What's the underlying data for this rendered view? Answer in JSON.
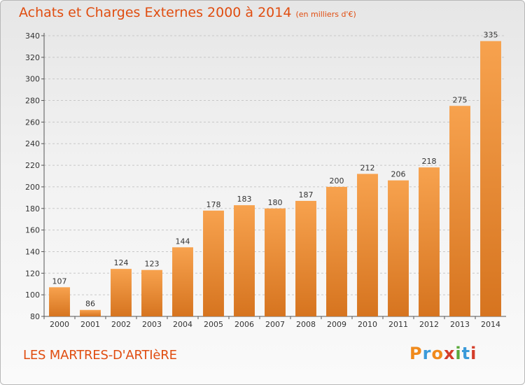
{
  "header": {
    "title": "Achats et Charges Externes 2000 à 2014",
    "subtitle": "(en milliers d'€)"
  },
  "footer": {
    "commune": "LES MARTRES-D'ARTIèRE",
    "brand": "Proxiti"
  },
  "colors": {
    "accent": "#e04d10",
    "bar_top": "#f7a24e",
    "bar_bottom": "#d6741f",
    "grid": "#c8c8c8",
    "brand_letters": [
      "#f08a1c",
      "#3a9ad9",
      "#f08a1c",
      "#d43d2a",
      "#5aa83a",
      "#3a9ad9",
      "#d43d2a"
    ]
  },
  "chart_data": {
    "type": "bar",
    "title": "Achats et Charges Externes 2000 à 2014",
    "subtitle": "(en milliers d'€)",
    "xlabel": "",
    "ylabel": "",
    "categories": [
      "2000",
      "2001",
      "2002",
      "2003",
      "2004",
      "2005",
      "2006",
      "2007",
      "2008",
      "2009",
      "2010",
      "2011",
      "2012",
      "2013",
      "2014"
    ],
    "values": [
      107,
      86,
      124,
      123,
      144,
      178,
      183,
      180,
      187,
      200,
      212,
      206,
      218,
      275,
      335
    ],
    "ylim": [
      80,
      340
    ],
    "yticks": [
      80,
      100,
      120,
      140,
      160,
      180,
      200,
      220,
      240,
      260,
      280,
      300,
      320,
      340
    ],
    "grid": true,
    "legend": "none",
    "data_labels": true
  }
}
